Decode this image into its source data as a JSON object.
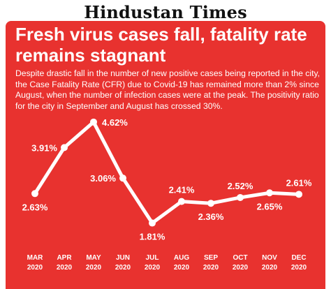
{
  "masthead": "Hindustan Times",
  "chart_data": {
    "type": "line",
    "title": "Fresh virus cases fall, fatality rate remains stagnant",
    "subtitle": "Despite drastic fall in the number of new positive cases being reported in the city, the Case Fatality Rate (CFR) due to Covid-19 has remained more than 2% since August, when the number of infection cases were at the peak. The positivity ratio for the city in September and August has crossed 30%.",
    "categories": [
      {
        "month": "MAR",
        "year": "2020"
      },
      {
        "month": "APR",
        "year": "2020"
      },
      {
        "month": "MAY",
        "year": "2020"
      },
      {
        "month": "JUN",
        "year": "2020"
      },
      {
        "month": "JUL",
        "year": "2020"
      },
      {
        "month": "AUG",
        "year": "2020"
      },
      {
        "month": "SEP",
        "year": "2020"
      },
      {
        "month": "OCT",
        "year": "2020"
      },
      {
        "month": "NOV",
        "year": "2020"
      },
      {
        "month": "DEC",
        "year": "2020"
      }
    ],
    "values": [
      2.63,
      3.91,
      4.62,
      3.06,
      1.81,
      2.41,
      2.36,
      2.52,
      2.65,
      2.61
    ],
    "labels": [
      "2.63%",
      "3.91%",
      "4.62%",
      "3.06%",
      "1.81%",
      "2.41%",
      "2.36%",
      "2.52%",
      "2.65%",
      "2.61%"
    ],
    "label_position": [
      "below",
      "left",
      "right",
      "left",
      "below",
      "above",
      "below",
      "above",
      "below",
      "above"
    ],
    "colors": {
      "background": "#e8322f",
      "line": "#ffffff",
      "marker": "#ffffff"
    },
    "grid": false,
    "legend": "none"
  }
}
